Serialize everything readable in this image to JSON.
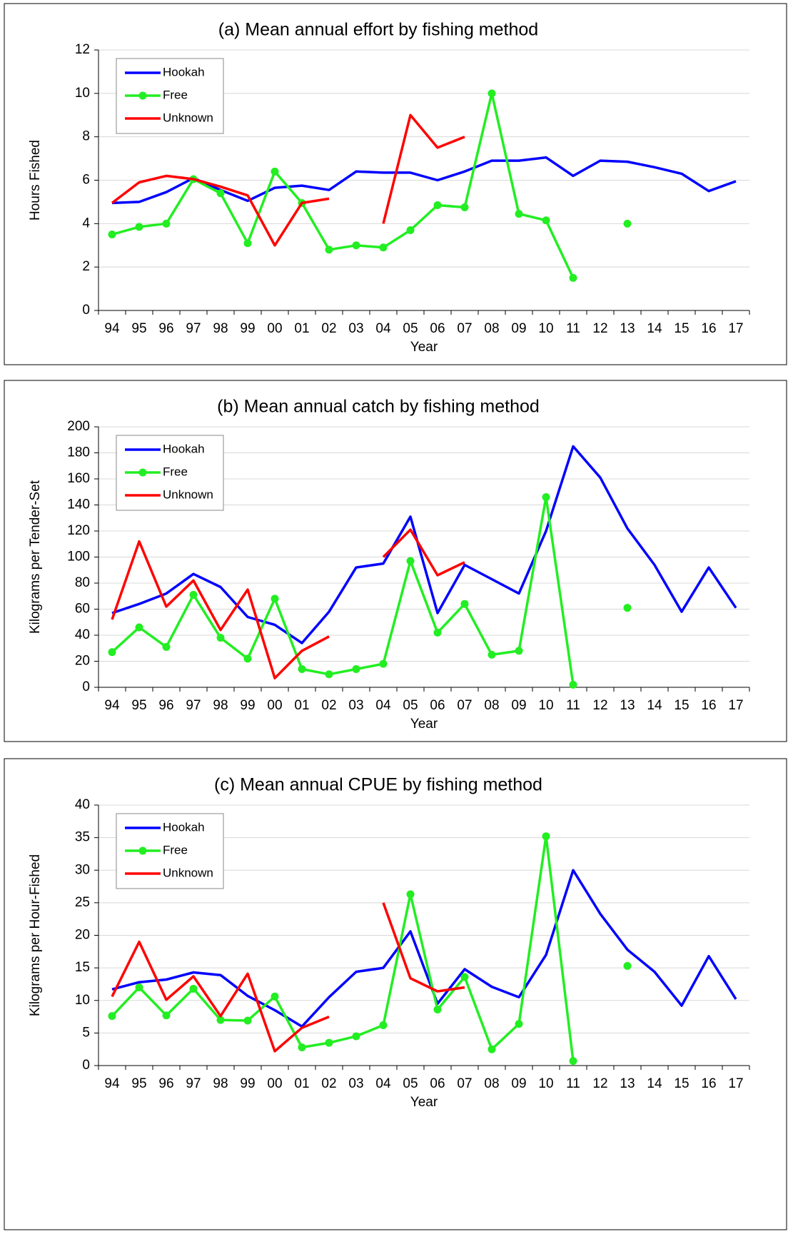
{
  "chart_data": [
    {
      "type": "line",
      "title": "(a) Mean annual effort by fishing method",
      "y_label": "Hours Fished",
      "x_label": "Year",
      "categories": [
        "94",
        "95",
        "96",
        "97",
        "98",
        "99",
        "00",
        "01",
        "02",
        "03",
        "04",
        "05",
        "06",
        "07",
        "08",
        "09",
        "10",
        "11",
        "12",
        "13",
        "14",
        "15",
        "16",
        "17"
      ],
      "ylim": [
        0,
        12
      ],
      "yticks": [
        0,
        2,
        4,
        6,
        8,
        10,
        12
      ],
      "grid": true,
      "legend": "top-left",
      "series": [
        {
          "name": "Hookah",
          "color": "#0000ff",
          "markers": false,
          "values": [
            4.95,
            5.0,
            5.45,
            6.1,
            5.55,
            5.05,
            5.65,
            5.75,
            5.55,
            6.4,
            6.35,
            6.35,
            6.0,
            6.4,
            6.9,
            6.9,
            7.05,
            6.2,
            6.9,
            6.85,
            6.6,
            6.3,
            5.5,
            5.95
          ]
        },
        {
          "name": "Free",
          "color": "#22ee22",
          "markers": true,
          "values": [
            3.5,
            3.85,
            4.0,
            6.05,
            5.4,
            3.1,
            6.4,
            4.95,
            2.8,
            3.0,
            2.9,
            3.7,
            4.85,
            4.75,
            10.0,
            4.45,
            4.15,
            1.5,
            null,
            4.0,
            null,
            null,
            null,
            null
          ]
        },
        {
          "name": "Unknown",
          "color": "#ff0000",
          "markers": false,
          "values": [
            4.95,
            5.9,
            6.2,
            6.05,
            5.7,
            5.3,
            3.0,
            4.95,
            5.15,
            null,
            4.0,
            9.0,
            7.5,
            8.0,
            null,
            null,
            null,
            null,
            null,
            null,
            null,
            null,
            null,
            null
          ]
        }
      ]
    },
    {
      "type": "line",
      "title": "(b) Mean annual catch by fishing method",
      "y_label": "Kilograms per Tender-Set",
      "x_label": "Year",
      "categories": [
        "94",
        "95",
        "96",
        "97",
        "98",
        "99",
        "00",
        "01",
        "02",
        "03",
        "04",
        "05",
        "06",
        "07",
        "08",
        "09",
        "10",
        "11",
        "12",
        "13",
        "14",
        "15",
        "16",
        "17"
      ],
      "ylim": [
        0,
        200
      ],
      "yticks": [
        0,
        20,
        40,
        60,
        80,
        100,
        120,
        140,
        160,
        180,
        200
      ],
      "grid": true,
      "legend": "top-left",
      "series": [
        {
          "name": "Hookah",
          "color": "#0000ff",
          "markers": false,
          "values": [
            57,
            64,
            72,
            87,
            77,
            54,
            48,
            34,
            58,
            92,
            95,
            131,
            57,
            94,
            83,
            72,
            120,
            185,
            161,
            122,
            94,
            58,
            92,
            61
          ]
        },
        {
          "name": "Free",
          "color": "#22ee22",
          "markers": true,
          "values": [
            27,
            46,
            31,
            71,
            38,
            22,
            68,
            14,
            10,
            14,
            18,
            97,
            42,
            64,
            25,
            28,
            146,
            2,
            null,
            61,
            null,
            null,
            null,
            null
          ]
        },
        {
          "name": "Unknown",
          "color": "#ff0000",
          "markers": false,
          "values": [
            52,
            112,
            62,
            82,
            44,
            75,
            7,
            28,
            39,
            null,
            100,
            121,
            86,
            96,
            null,
            null,
            null,
            null,
            null,
            null,
            null,
            null,
            null,
            null
          ]
        }
      ]
    },
    {
      "type": "line",
      "title": "(c) Mean annual CPUE by fishing method",
      "y_label": "Kilograms per Hour-Fished",
      "x_label": "Year",
      "categories": [
        "94",
        "95",
        "96",
        "97",
        "98",
        "99",
        "00",
        "01",
        "02",
        "03",
        "04",
        "05",
        "06",
        "07",
        "08",
        "09",
        "10",
        "11",
        "12",
        "13",
        "14",
        "15",
        "16",
        "17"
      ],
      "ylim": [
        0,
        40
      ],
      "yticks": [
        0,
        5,
        10,
        15,
        20,
        25,
        30,
        35,
        40
      ],
      "grid": true,
      "legend": "top-left",
      "series": [
        {
          "name": "Hookah",
          "color": "#0000ff",
          "markers": false,
          "values": [
            11.7,
            12.8,
            13.2,
            14.3,
            13.9,
            10.7,
            8.5,
            6.0,
            10.5,
            14.4,
            15.0,
            20.6,
            9.5,
            14.8,
            12.1,
            10.5,
            17.0,
            30.0,
            23.3,
            17.8,
            14.4,
            9.2,
            16.8,
            10.2
          ]
        },
        {
          "name": "Free",
          "color": "#22ee22",
          "markers": true,
          "values": [
            7.6,
            12.0,
            7.7,
            11.8,
            7.0,
            6.9,
            10.6,
            2.8,
            3.5,
            4.5,
            6.2,
            26.3,
            8.6,
            13.6,
            2.5,
            6.4,
            35.2,
            0.7,
            null,
            15.3,
            null,
            null,
            null,
            null
          ]
        },
        {
          "name": "Unknown",
          "color": "#ff0000",
          "markers": false,
          "values": [
            10.6,
            19.0,
            10.1,
            13.7,
            7.6,
            14.1,
            2.2,
            5.8,
            7.5,
            null,
            25.0,
            13.4,
            11.4,
            12.0,
            null,
            null,
            null,
            null,
            null,
            null,
            null,
            null,
            null,
            null
          ]
        }
      ]
    }
  ]
}
